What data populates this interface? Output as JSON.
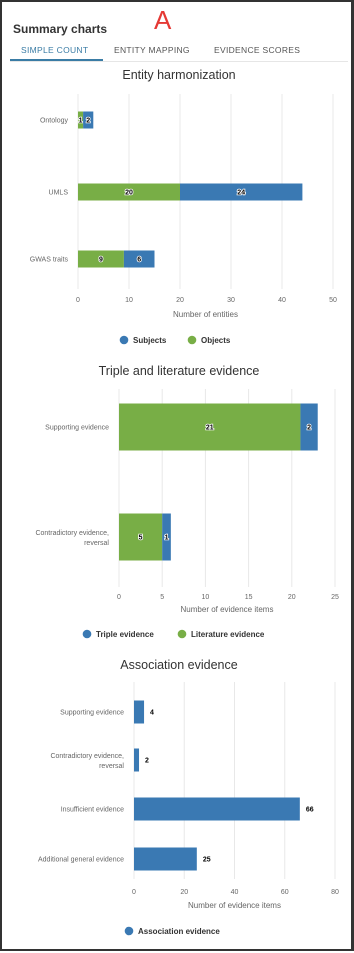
{
  "header": {
    "title": "Summary charts",
    "figure_letter": "A"
  },
  "tabs": [
    {
      "label": "SIMPLE COUNT",
      "active": true
    },
    {
      "label": "ENTITY MAPPING",
      "active": false
    },
    {
      "label": "EVIDENCE SCORES",
      "active": false
    }
  ],
  "colors": {
    "blue": "#3a79b3",
    "green": "#78ae46",
    "accent": "#3a7ca5"
  },
  "chart_data": [
    {
      "type": "bar",
      "orientation": "horizontal",
      "stacked": true,
      "title": "Entity harmonization",
      "categories": [
        "Ontology",
        "UMLS",
        "GWAS traits"
      ],
      "series": [
        {
          "name": "Objects",
          "color": "#78ae46",
          "values": [
            1,
            20,
            9
          ]
        },
        {
          "name": "Subjects",
          "color": "#3a79b3",
          "values": [
            2,
            24,
            6
          ]
        }
      ],
      "xlabel": "Number of entities",
      "ylabel": "",
      "xlim": [
        0,
        50
      ],
      "xticks": [
        0,
        10,
        20,
        30,
        40,
        50
      ],
      "legend": [
        {
          "label": "Subjects",
          "color": "#3a79b3"
        },
        {
          "label": "Objects",
          "color": "#78ae46"
        }
      ],
      "legend_position": "bottom",
      "grid": true
    },
    {
      "type": "bar",
      "orientation": "horizontal",
      "stacked": true,
      "title": "Triple and literature evidence",
      "categories": [
        "Supporting evidence",
        "Contradictory evidence, reversal"
      ],
      "series": [
        {
          "name": "Literature evidence",
          "color": "#78ae46",
          "values": [
            21,
            5
          ]
        },
        {
          "name": "Triple evidence",
          "color": "#3a79b3",
          "values": [
            2,
            1
          ]
        }
      ],
      "xlabel": "Number of evidence items",
      "ylabel": "",
      "xlim": [
        0,
        25
      ],
      "xticks": [
        0,
        5,
        10,
        15,
        20,
        25
      ],
      "legend": [
        {
          "label": "Triple evidence",
          "color": "#3a79b3"
        },
        {
          "label": "Literature evidence",
          "color": "#78ae46"
        }
      ],
      "legend_position": "bottom",
      "grid": true
    },
    {
      "type": "bar",
      "orientation": "horizontal",
      "stacked": false,
      "title": "Association evidence",
      "categories": [
        "Supporting evidence",
        "Contradictory evidence, reversal",
        "Insufficient evidence",
        "Additional general evidence"
      ],
      "series": [
        {
          "name": "Association evidence",
          "color": "#3a79b3",
          "values": [
            4,
            2,
            66,
            25
          ]
        }
      ],
      "xlabel": "Number of evidence items",
      "ylabel": "",
      "xlim": [
        0,
        80
      ],
      "xticks": [
        0,
        20,
        40,
        60,
        80
      ],
      "legend": [
        {
          "label": "Association evidence",
          "color": "#3a79b3"
        }
      ],
      "legend_position": "bottom",
      "grid": true
    }
  ]
}
